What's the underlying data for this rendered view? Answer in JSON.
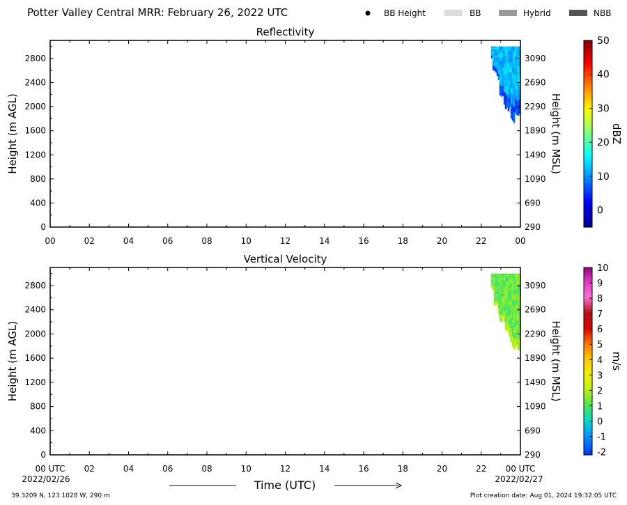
{
  "header": {
    "title": "Potter Valley Central MRR:  February 26, 2022 UTC",
    "legend": [
      {
        "label": "BB Height",
        "kind": "dot",
        "color": "#000000"
      },
      {
        "label": "BB",
        "kind": "box",
        "color": "#dcdcdc"
      },
      {
        "label": "Hybrid",
        "kind": "box",
        "color": "#999999"
      },
      {
        "label": "NBB",
        "kind": "box",
        "color": "#555555"
      }
    ]
  },
  "footer": {
    "location": "39.3209 N, 123.1028 W, 290 m",
    "created": "Plot creation date: Aug 01, 2024 19:32:05 UTC",
    "time_label": "Time (UTC)",
    "start_date": "2022/02/26",
    "end_date": "2022/02/27"
  },
  "chart_data": [
    {
      "type": "heatmap",
      "title": "Reflectivity",
      "xlabel": "",
      "ylabel": "Height (m AGL)",
      "y2label": "Height (m MSL)",
      "xlim": [
        0,
        24
      ],
      "ylim": [
        0,
        3100
      ],
      "x_ticks": [
        "00",
        "02",
        "04",
        "06",
        "08",
        "10",
        "12",
        "14",
        "16",
        "18",
        "20",
        "22",
        "00"
      ],
      "y_ticks": [
        0,
        400,
        800,
        1200,
        1600,
        2000,
        2400,
        2800
      ],
      "y2_ticks": [
        290,
        690,
        1090,
        1490,
        1890,
        2290,
        2690,
        3090
      ],
      "colorbar": {
        "label": "dBZ",
        "min": -5,
        "max": 50,
        "ticks": [
          0,
          10,
          20,
          30,
          40,
          50
        ]
      },
      "echo_top_m": 3000,
      "echo_base_m_by_time": [
        {
          "x": 22.5,
          "y": 2800
        },
        {
          "x": 22.6,
          "y": 2600
        },
        {
          "x": 22.75,
          "y": 2450
        },
        {
          "x": 22.9,
          "y": 2300
        },
        {
          "x": 23.05,
          "y": 2200
        },
        {
          "x": 23.2,
          "y": 2050
        },
        {
          "x": 23.4,
          "y": 1900
        },
        {
          "x": 23.6,
          "y": 1800
        },
        {
          "x": 23.95,
          "y": 1800
        }
      ],
      "typical_value": 12
    },
    {
      "type": "heatmap",
      "title": "Vertical Velocity",
      "xlabel": "",
      "ylabel": "Height (m AGL)",
      "y2label": "Height (m MSL)",
      "xlim": [
        0,
        24
      ],
      "ylim": [
        0,
        3100
      ],
      "x_ticks": [
        "00 UTC",
        "02",
        "04",
        "06",
        "08",
        "10",
        "12",
        "14",
        "16",
        "18",
        "20",
        "22",
        "00 UTC"
      ],
      "y_ticks": [
        0,
        400,
        800,
        1200,
        1600,
        2000,
        2400,
        2800
      ],
      "y2_ticks": [
        290,
        690,
        1090,
        1490,
        1890,
        2290,
        2690,
        3090
      ],
      "colorbar": {
        "label": "m/s",
        "min": -2.2,
        "max": 10,
        "ticks": [
          -2,
          -1,
          0,
          1,
          2,
          3,
          4,
          5,
          6,
          7,
          8,
          9,
          10
        ]
      },
      "echo_top_m": 3000,
      "echo_base_m_by_time": [
        {
          "x": 22.5,
          "y": 2800
        },
        {
          "x": 22.6,
          "y": 2600
        },
        {
          "x": 22.75,
          "y": 2450
        },
        {
          "x": 22.9,
          "y": 2300
        },
        {
          "x": 23.05,
          "y": 2200
        },
        {
          "x": 23.2,
          "y": 2050
        },
        {
          "x": 23.4,
          "y": 1900
        },
        {
          "x": 23.6,
          "y": 1800
        },
        {
          "x": 23.95,
          "y": 1800
        }
      ],
      "typical_value": 1.2
    }
  ]
}
